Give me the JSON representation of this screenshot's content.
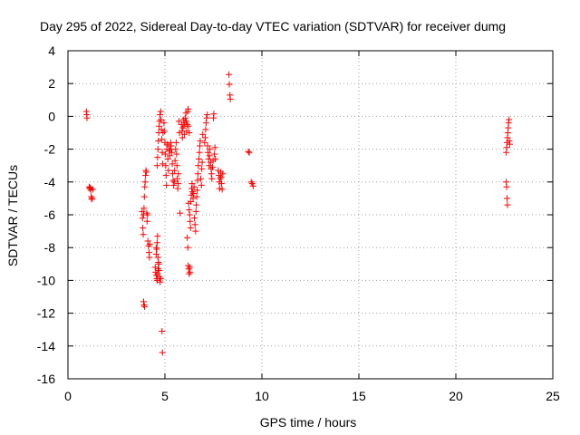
{
  "chart_data": {
    "type": "scatter",
    "title": "Day 295 of 2022, Sidereal Day-to-day VTEC variation (SDTVAR) for receiver dumg",
    "xlabel": "GPS time / hours",
    "ylabel": "SDTVAR / TECUs",
    "xlim": [
      0,
      25
    ],
    "ylim": [
      -16,
      4
    ],
    "xticks": [
      0,
      5,
      10,
      15,
      20,
      25
    ],
    "yticks": [
      -16,
      -14,
      -12,
      -10,
      -8,
      -6,
      -4,
      -2,
      0,
      2,
      4
    ],
    "grid": true,
    "marker": "plus",
    "series_color": "#ff0000",
    "series": [
      {
        "name": "SDTVAR",
        "points": [
          [
            0.95,
            0.3
          ],
          [
            0.97,
            0.1
          ],
          [
            0.98,
            -0.1
          ],
          [
            1.1,
            -4.3
          ],
          [
            1.12,
            -4.4
          ],
          [
            1.15,
            -4.35
          ],
          [
            1.18,
            -4.5
          ],
          [
            1.2,
            -4.9
          ],
          [
            1.22,
            -5.05
          ],
          [
            1.25,
            -5.0
          ],
          [
            1.28,
            -4.45
          ],
          [
            3.82,
            -5.8
          ],
          [
            3.84,
            -6.2
          ],
          [
            3.86,
            -6.8
          ],
          [
            3.88,
            -7.2
          ],
          [
            3.9,
            -6.0
          ],
          [
            3.92,
            -5.6
          ],
          [
            3.94,
            -4.9
          ],
          [
            3.96,
            -4.3
          ],
          [
            3.98,
            -4.0
          ],
          [
            4.0,
            -3.6
          ],
          [
            4.02,
            -3.3
          ],
          [
            4.04,
            -3.4
          ],
          [
            4.06,
            -5.9
          ],
          [
            4.08,
            -6.4
          ],
          [
            4.1,
            -6.0
          ],
          [
            3.9,
            -11.3
          ],
          [
            3.92,
            -11.5
          ],
          [
            3.95,
            -11.6
          ],
          [
            4.12,
            -7.6
          ],
          [
            4.15,
            -7.9
          ],
          [
            4.18,
            -8.3
          ],
          [
            4.2,
            -8.6
          ],
          [
            4.22,
            -7.8
          ],
          [
            4.5,
            -9.2
          ],
          [
            4.52,
            -9.5
          ],
          [
            4.55,
            -9.7
          ],
          [
            4.58,
            -9.9
          ],
          [
            4.6,
            -10.0
          ],
          [
            4.62,
            -9.6
          ],
          [
            4.65,
            -9.3
          ],
          [
            4.55,
            -8.4
          ],
          [
            4.58,
            -8.1
          ],
          [
            4.6,
            -7.7
          ],
          [
            4.62,
            -7.3
          ],
          [
            4.64,
            -8.6
          ],
          [
            4.66,
            -8.9
          ],
          [
            4.68,
            -9.0
          ],
          [
            4.7,
            -9.4
          ],
          [
            4.72,
            -9.8
          ],
          [
            4.75,
            -10.1
          ],
          [
            4.78,
            -9.9
          ],
          [
            4.55,
            -8.0
          ],
          [
            4.6,
            -3.0
          ],
          [
            4.62,
            -2.5
          ],
          [
            4.64,
            -2.0
          ],
          [
            4.66,
            -1.5
          ],
          [
            4.68,
            -1.0
          ],
          [
            4.7,
            -0.6
          ],
          [
            4.72,
            -0.3
          ],
          [
            4.75,
            0.1
          ],
          [
            4.78,
            0.3
          ],
          [
            4.8,
            -0.2
          ],
          [
            4.82,
            -0.8
          ],
          [
            4.84,
            -1.4
          ],
          [
            4.86,
            -2.2
          ],
          [
            4.88,
            -2.9
          ],
          [
            4.9,
            -1.0
          ],
          [
            4.85,
            -13.1
          ],
          [
            4.87,
            -14.4
          ],
          [
            4.95,
            -0.4
          ],
          [
            4.97,
            -0.9
          ],
          [
            5.0,
            -1.6
          ],
          [
            5.02,
            -2.3
          ],
          [
            5.04,
            -3.0
          ],
          [
            5.06,
            -3.6
          ],
          [
            5.08,
            -4.2
          ],
          [
            5.1,
            -2.0
          ],
          [
            5.12,
            -1.7
          ],
          [
            5.15,
            -2.6
          ],
          [
            5.18,
            -3.3
          ],
          [
            5.2,
            -1.8
          ],
          [
            5.22,
            -2.1
          ],
          [
            5.25,
            -2.4
          ],
          [
            5.28,
            -2.0
          ],
          [
            5.3,
            -1.6
          ],
          [
            5.32,
            -1.8
          ],
          [
            5.35,
            -2.2
          ],
          [
            5.38,
            -2.9
          ],
          [
            5.4,
            -3.5
          ],
          [
            5.42,
            -3.9
          ],
          [
            5.45,
            -4.2
          ],
          [
            5.48,
            -4.0
          ],
          [
            5.5,
            -3.3
          ],
          [
            5.52,
            -2.7
          ],
          [
            5.55,
            -2.0
          ],
          [
            5.58,
            -1.6
          ],
          [
            5.6,
            -2.3
          ],
          [
            5.62,
            -3.0
          ],
          [
            5.64,
            -3.8
          ],
          [
            5.66,
            -4.4
          ],
          [
            5.68,
            -4.1
          ],
          [
            5.7,
            -3.5
          ],
          [
            5.72,
            -0.3
          ],
          [
            5.75,
            -1.0
          ],
          [
            5.78,
            -5.9
          ],
          [
            5.85,
            -0.5
          ],
          [
            5.88,
            -0.9
          ],
          [
            5.9,
            -1.3
          ],
          [
            5.92,
            -0.7
          ],
          [
            5.95,
            -0.2
          ],
          [
            5.98,
            -0.6
          ],
          [
            6.0,
            -1.1
          ],
          [
            6.02,
            -0.4
          ],
          [
            6.05,
            -0.1
          ],
          [
            6.08,
            0.2
          ],
          [
            6.1,
            -0.3
          ],
          [
            6.12,
            -0.9
          ],
          [
            6.15,
            -0.5
          ],
          [
            6.18,
            0.3
          ],
          [
            6.2,
            0.45
          ],
          [
            6.22,
            -0.6
          ],
          [
            6.25,
            -1.0
          ],
          [
            6.15,
            -7.4
          ],
          [
            6.18,
            -8.0
          ],
          [
            6.2,
            -9.1
          ],
          [
            6.22,
            -9.3
          ],
          [
            6.25,
            -9.6
          ],
          [
            6.28,
            -9.2
          ],
          [
            6.3,
            -9.5
          ],
          [
            6.22,
            -5.3
          ],
          [
            6.25,
            -5.7
          ],
          [
            6.28,
            -6.0
          ],
          [
            6.3,
            -6.4
          ],
          [
            6.32,
            -6.8
          ],
          [
            6.34,
            -5.2
          ],
          [
            6.36,
            -4.8
          ],
          [
            6.38,
            -4.4
          ],
          [
            6.4,
            -4.1
          ],
          [
            6.42,
            -4.6
          ],
          [
            6.45,
            -5.0
          ],
          [
            6.48,
            -4.7
          ],
          [
            6.5,
            -4.3
          ],
          [
            6.52,
            -6.2
          ],
          [
            6.55,
            -6.6
          ],
          [
            6.58,
            -7.0
          ],
          [
            6.6,
            -5.8
          ],
          [
            6.62,
            -5.4
          ],
          [
            6.64,
            -4.9
          ],
          [
            6.66,
            -4.5
          ],
          [
            6.68,
            -3.9
          ],
          [
            6.7,
            -3.5
          ],
          [
            6.72,
            -3.0
          ],
          [
            6.75,
            -2.6
          ],
          [
            6.78,
            -2.2
          ],
          [
            6.8,
            -1.8
          ],
          [
            6.82,
            -1.5
          ],
          [
            6.85,
            -3.8
          ],
          [
            6.88,
            -4.2
          ],
          [
            6.9,
            -3.2
          ],
          [
            6.92,
            -2.8
          ],
          [
            6.95,
            -1.1
          ],
          [
            7.05,
            -1.6
          ],
          [
            7.08,
            -1.3
          ],
          [
            7.1,
            -0.8
          ],
          [
            7.12,
            -0.4
          ],
          [
            7.15,
            -0.1
          ],
          [
            7.18,
            0.1
          ],
          [
            7.2,
            -1.8
          ],
          [
            7.22,
            -2.2
          ],
          [
            7.25,
            -2.6
          ],
          [
            7.28,
            -3.0
          ],
          [
            7.3,
            -2.4
          ],
          [
            7.32,
            -2.0
          ],
          [
            7.35,
            -2.8
          ],
          [
            7.38,
            -3.2
          ],
          [
            7.4,
            -3.5
          ],
          [
            7.42,
            -3.8
          ],
          [
            7.45,
            -3.1
          ],
          [
            7.48,
            -2.7
          ],
          [
            7.5,
            -0.1
          ],
          [
            7.52,
            0.15
          ],
          [
            7.55,
            -2.3
          ],
          [
            7.58,
            -1.9
          ],
          [
            7.6,
            -2.6
          ],
          [
            7.75,
            -3.3
          ],
          [
            7.78,
            -3.6
          ],
          [
            7.8,
            -4.0
          ],
          [
            7.82,
            -4.4
          ],
          [
            7.85,
            -3.8
          ],
          [
            7.88,
            -3.4
          ],
          [
            7.9,
            -3.7
          ],
          [
            7.92,
            -4.1
          ],
          [
            7.95,
            -4.45
          ],
          [
            7.98,
            -3.5
          ],
          [
            8.3,
            2.55
          ],
          [
            8.32,
            1.95
          ],
          [
            8.35,
            1.3
          ],
          [
            8.37,
            1.05
          ],
          [
            9.3,
            -2.15
          ],
          [
            9.35,
            -2.2
          ],
          [
            9.45,
            -4.0
          ],
          [
            9.5,
            -4.1
          ],
          [
            9.55,
            -4.25
          ],
          [
            22.6,
            -2.2
          ],
          [
            22.62,
            -1.9
          ],
          [
            22.64,
            -1.6
          ],
          [
            22.66,
            -1.3
          ],
          [
            22.68,
            -1.0
          ],
          [
            22.7,
            -0.7
          ],
          [
            22.72,
            -0.4
          ],
          [
            22.74,
            -0.2
          ],
          [
            22.76,
            -1.5
          ],
          [
            22.78,
            -1.7
          ],
          [
            22.6,
            -4.0
          ],
          [
            22.62,
            -4.3
          ],
          [
            22.64,
            -5.0
          ],
          [
            22.66,
            -5.4
          ]
        ]
      }
    ]
  }
}
